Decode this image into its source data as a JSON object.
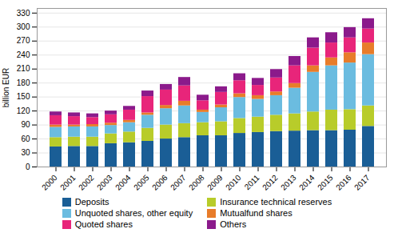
{
  "chart_data": {
    "type": "bar",
    "stacked": true,
    "categories": [
      "2000",
      "2001",
      "2002",
      "2003",
      "2004",
      "2005",
      "2006",
      "2007",
      "2008",
      "2009",
      "2010",
      "2011",
      "2012",
      "2013",
      "2014",
      "2015",
      "2016",
      "2017"
    ],
    "series": [
      {
        "name": "Deposits",
        "color": "#1a5e96",
        "values": [
          43,
          44,
          44,
          50,
          52,
          55,
          60,
          63,
          67,
          67,
          72,
          74,
          76,
          77,
          78,
          78,
          79,
          87
        ]
      },
      {
        "name": "Insurance technical reserves",
        "color": "#b8cc2a",
        "values": [
          20,
          20,
          20,
          21,
          23,
          28,
          30,
          30,
          28,
          30,
          32,
          33,
          35,
          37,
          40,
          44,
          44,
          44
        ]
      },
      {
        "name": "Unquoted shares, other equity",
        "color": "#6bbce0",
        "values": [
          22,
          22,
          22,
          18,
          20,
          28,
          35,
          38,
          22,
          30,
          45,
          38,
          42,
          55,
          85,
          95,
          100,
          110
        ]
      },
      {
        "name": "Mutualfund shares",
        "color": "#e87c2a",
        "values": [
          5,
          4,
          5,
          5,
          5,
          5,
          7,
          10,
          5,
          6,
          8,
          8,
          8,
          10,
          14,
          17,
          22,
          25
        ]
      },
      {
        "name": "Quoted shares",
        "color": "#e8257a",
        "values": [
          20,
          18,
          15,
          18,
          22,
          35,
          33,
          33,
          20,
          27,
          28,
          22,
          30,
          38,
          38,
          32,
          32,
          30
        ]
      },
      {
        "name": "Others",
        "color": "#8b1a8b",
        "values": [
          8,
          8,
          8,
          8,
          8,
          12,
          12,
          18,
          12,
          12,
          15,
          15,
          18,
          20,
          22,
          22,
          22,
          22
        ]
      }
    ],
    "ylabel": "billion EUR",
    "ylim": [
      0,
      340
    ],
    "yticks": [
      0,
      30,
      60,
      90,
      120,
      150,
      180,
      210,
      240,
      270,
      300,
      330
    ],
    "grid": true,
    "legend": "bottom"
  }
}
